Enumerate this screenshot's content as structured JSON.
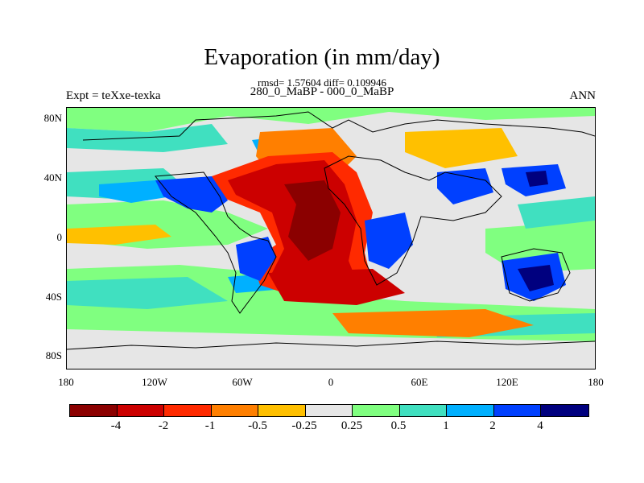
{
  "title": "Evaporation (in mm/day)",
  "stats_line": "rmsd= 1.57604 diff= 0.109946",
  "case_line": "280_0_MaBP - 000_0_MaBP",
  "left_label": "Expt = teXxe-texka",
  "right_label": "ANN",
  "map": {
    "lat_ticks": [
      "80N",
      "40N",
      "0",
      "40S",
      "80S"
    ],
    "lon_ticks": [
      "180",
      "120W",
      "60W",
      "0",
      "60E",
      "120E",
      "180"
    ],
    "lat_range": [
      -90,
      90
    ],
    "lon_range": [
      -180,
      180
    ],
    "background_color": "#e6e6e6"
  },
  "colorbar": {
    "colors": [
      "#8b0000",
      "#cc0000",
      "#ff2a00",
      "#ff7f00",
      "#ffc000",
      "#e6e6e6",
      "#80ff80",
      "#40e0c0",
      "#00b0ff",
      "#0040ff",
      "#00007f"
    ],
    "labels": [
      "-4",
      "-2",
      "-1",
      "-0.5",
      "-0.25",
      "0.25",
      "0.5",
      "1",
      "2",
      "4"
    ]
  }
}
